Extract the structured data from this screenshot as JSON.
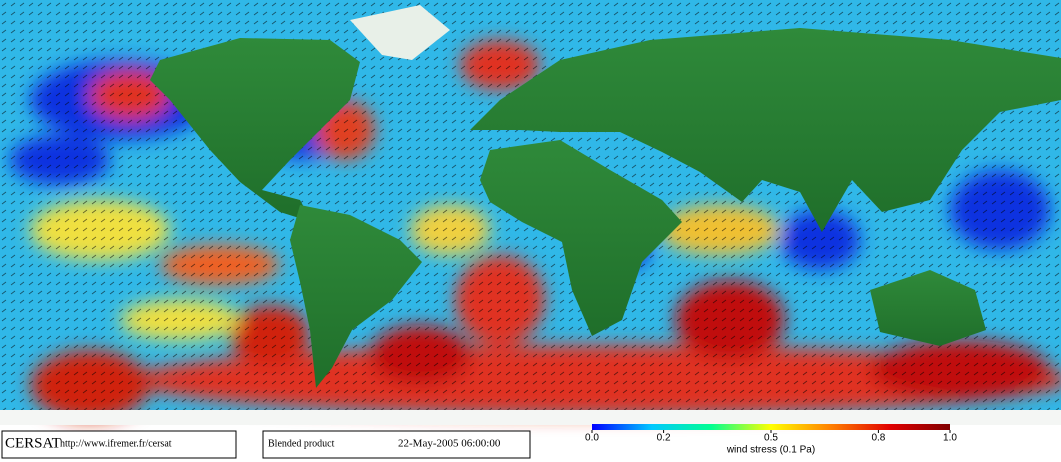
{
  "header": {
    "logo": "CERSAT",
    "url": "http://www.ifremer.fr/cersat"
  },
  "product": {
    "label": "Blended product",
    "date": "22-May-2005 06:00:00"
  },
  "colorbar": {
    "title": "wind stress (0.1 Pa)",
    "lim": [
      0,
      1
    ],
    "ticks": [
      {
        "value": 0,
        "label": "0.0"
      },
      0.2,
      0.5,
      0.8,
      {
        "value": 1,
        "label": "1.0"
      }
    ],
    "colors": [
      "#0000ff",
      "#00c8ff",
      "#00ff90",
      "#ffff00",
      "#ff8000",
      "#e00000",
      "#800000"
    ]
  }
}
